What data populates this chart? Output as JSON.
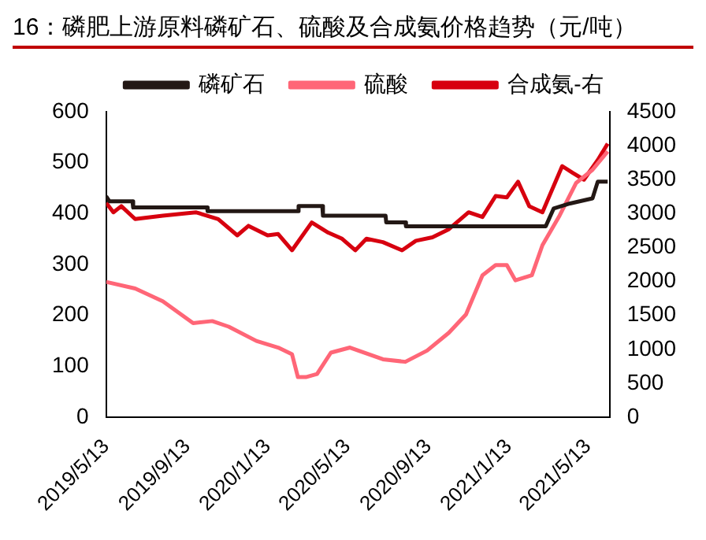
{
  "chart_data": {
    "type": "line",
    "title": "16：磷肥上游原料磷矿石、硫酸及合成氨价格趋势（元/吨）",
    "legend": "top",
    "grid": false,
    "marker": "none",
    "line_style": "solid",
    "xlim": [
      "2019-05-13",
      "2021-06-15"
    ],
    "xticks": [
      {
        "value": "2019-05-13",
        "label": "2019/5/13"
      },
      {
        "value": "2019-09-13",
        "label": "2019/9/13"
      },
      {
        "value": "2020-01-13",
        "label": "2020/1/13"
      },
      {
        "value": "2020-05-13",
        "label": "2020/5/13"
      },
      {
        "value": "2020-09-13",
        "label": "2020/9/13"
      },
      {
        "value": "2021-01-13",
        "label": "2021/1/13"
      },
      {
        "value": "2021-05-13",
        "label": "2021/5/13"
      }
    ],
    "ylim": [
      0,
      600
    ],
    "yticks": [
      0,
      100,
      200,
      300,
      400,
      500,
      600
    ],
    "y2lim": [
      0,
      4500
    ],
    "y2ticks": [
      0,
      500,
      1000,
      1500,
      2000,
      2500,
      3000,
      3500,
      4000,
      4500
    ],
    "series": [
      {
        "name": "磷矿石",
        "color": "#231815",
        "x": [
          "2019-05-13",
          "2019-05-18",
          "2019-06-22",
          "2019-06-23",
          "2019-10-13",
          "2019-10-14",
          "2020-02-28",
          "2020-02-29",
          "2020-04-05",
          "2020-04-06",
          "2020-07-10",
          "2020-07-11",
          "2020-08-09",
          "2020-08-10",
          "2020-11-17",
          "2021-03-10",
          "2021-03-22",
          "2021-04-16",
          "2021-05-20",
          "2021-05-28",
          "2021-06-12"
        ],
        "values": [
          434,
          424,
          424,
          412,
          412,
          405,
          405,
          415,
          415,
          396,
          396,
          383,
          383,
          375,
          375,
          375,
          410,
          420,
          430,
          463,
          463
        ]
      },
      {
        "name": "硫酸",
        "color": "#ff6677",
        "x": [
          "2019-05-13",
          "2019-06-26",
          "2019-08-07",
          "2019-09-22",
          "2019-10-21",
          "2019-11-15",
          "2019-12-27",
          "2020-01-29",
          "2020-02-19",
          "2020-02-28",
          "2020-03-11",
          "2020-03-28",
          "2020-04-18",
          "2020-05-17",
          "2020-07-06",
          "2020-08-09",
          "2020-09-11",
          "2020-10-14",
          "2020-11-09",
          "2020-12-04",
          "2020-12-24",
          "2021-01-10",
          "2021-01-23",
          "2021-02-17",
          "2021-03-05",
          "2021-03-31",
          "2021-04-25",
          "2021-05-20",
          "2021-06-12"
        ],
        "values": [
          266,
          253,
          228,
          185,
          189,
          178,
          150,
          137,
          124,
          79,
          79,
          85,
          127,
          137,
          114,
          109,
          131,
          166,
          202,
          279,
          299,
          299,
          269,
          279,
          338,
          396,
          460,
          486,
          522
        ]
      },
      {
        "name": "合成氨-右",
        "color": "#d7000f",
        "axis": "y2",
        "x": [
          "2019-05-13",
          "2019-05-24",
          "2019-06-05",
          "2019-06-26",
          "2019-08-07",
          "2019-09-26",
          "2019-10-30",
          "2019-11-28",
          "2019-12-15",
          "2020-01-13",
          "2020-01-29",
          "2020-02-19",
          "2020-03-20",
          "2020-04-14",
          "2020-05-05",
          "2020-05-25",
          "2020-06-11",
          "2020-07-06",
          "2020-08-04",
          "2020-08-25",
          "2020-09-19",
          "2020-10-14",
          "2020-11-13",
          "2020-12-04",
          "2020-12-24",
          "2021-01-10",
          "2021-01-27",
          "2021-02-13",
          "2021-03-05",
          "2021-04-04",
          "2021-04-20",
          "2021-05-07",
          "2021-05-28",
          "2021-06-12"
        ],
        "values": [
          3160,
          3020,
          3110,
          2920,
          2970,
          3020,
          2920,
          2680,
          2820,
          2680,
          2700,
          2460,
          2870,
          2720,
          2630,
          2460,
          2630,
          2580,
          2460,
          2600,
          2650,
          2770,
          3020,
          2950,
          3260,
          3240,
          3470,
          3110,
          3020,
          3700,
          3600,
          3500,
          3790,
          4030
        ]
      }
    ]
  }
}
